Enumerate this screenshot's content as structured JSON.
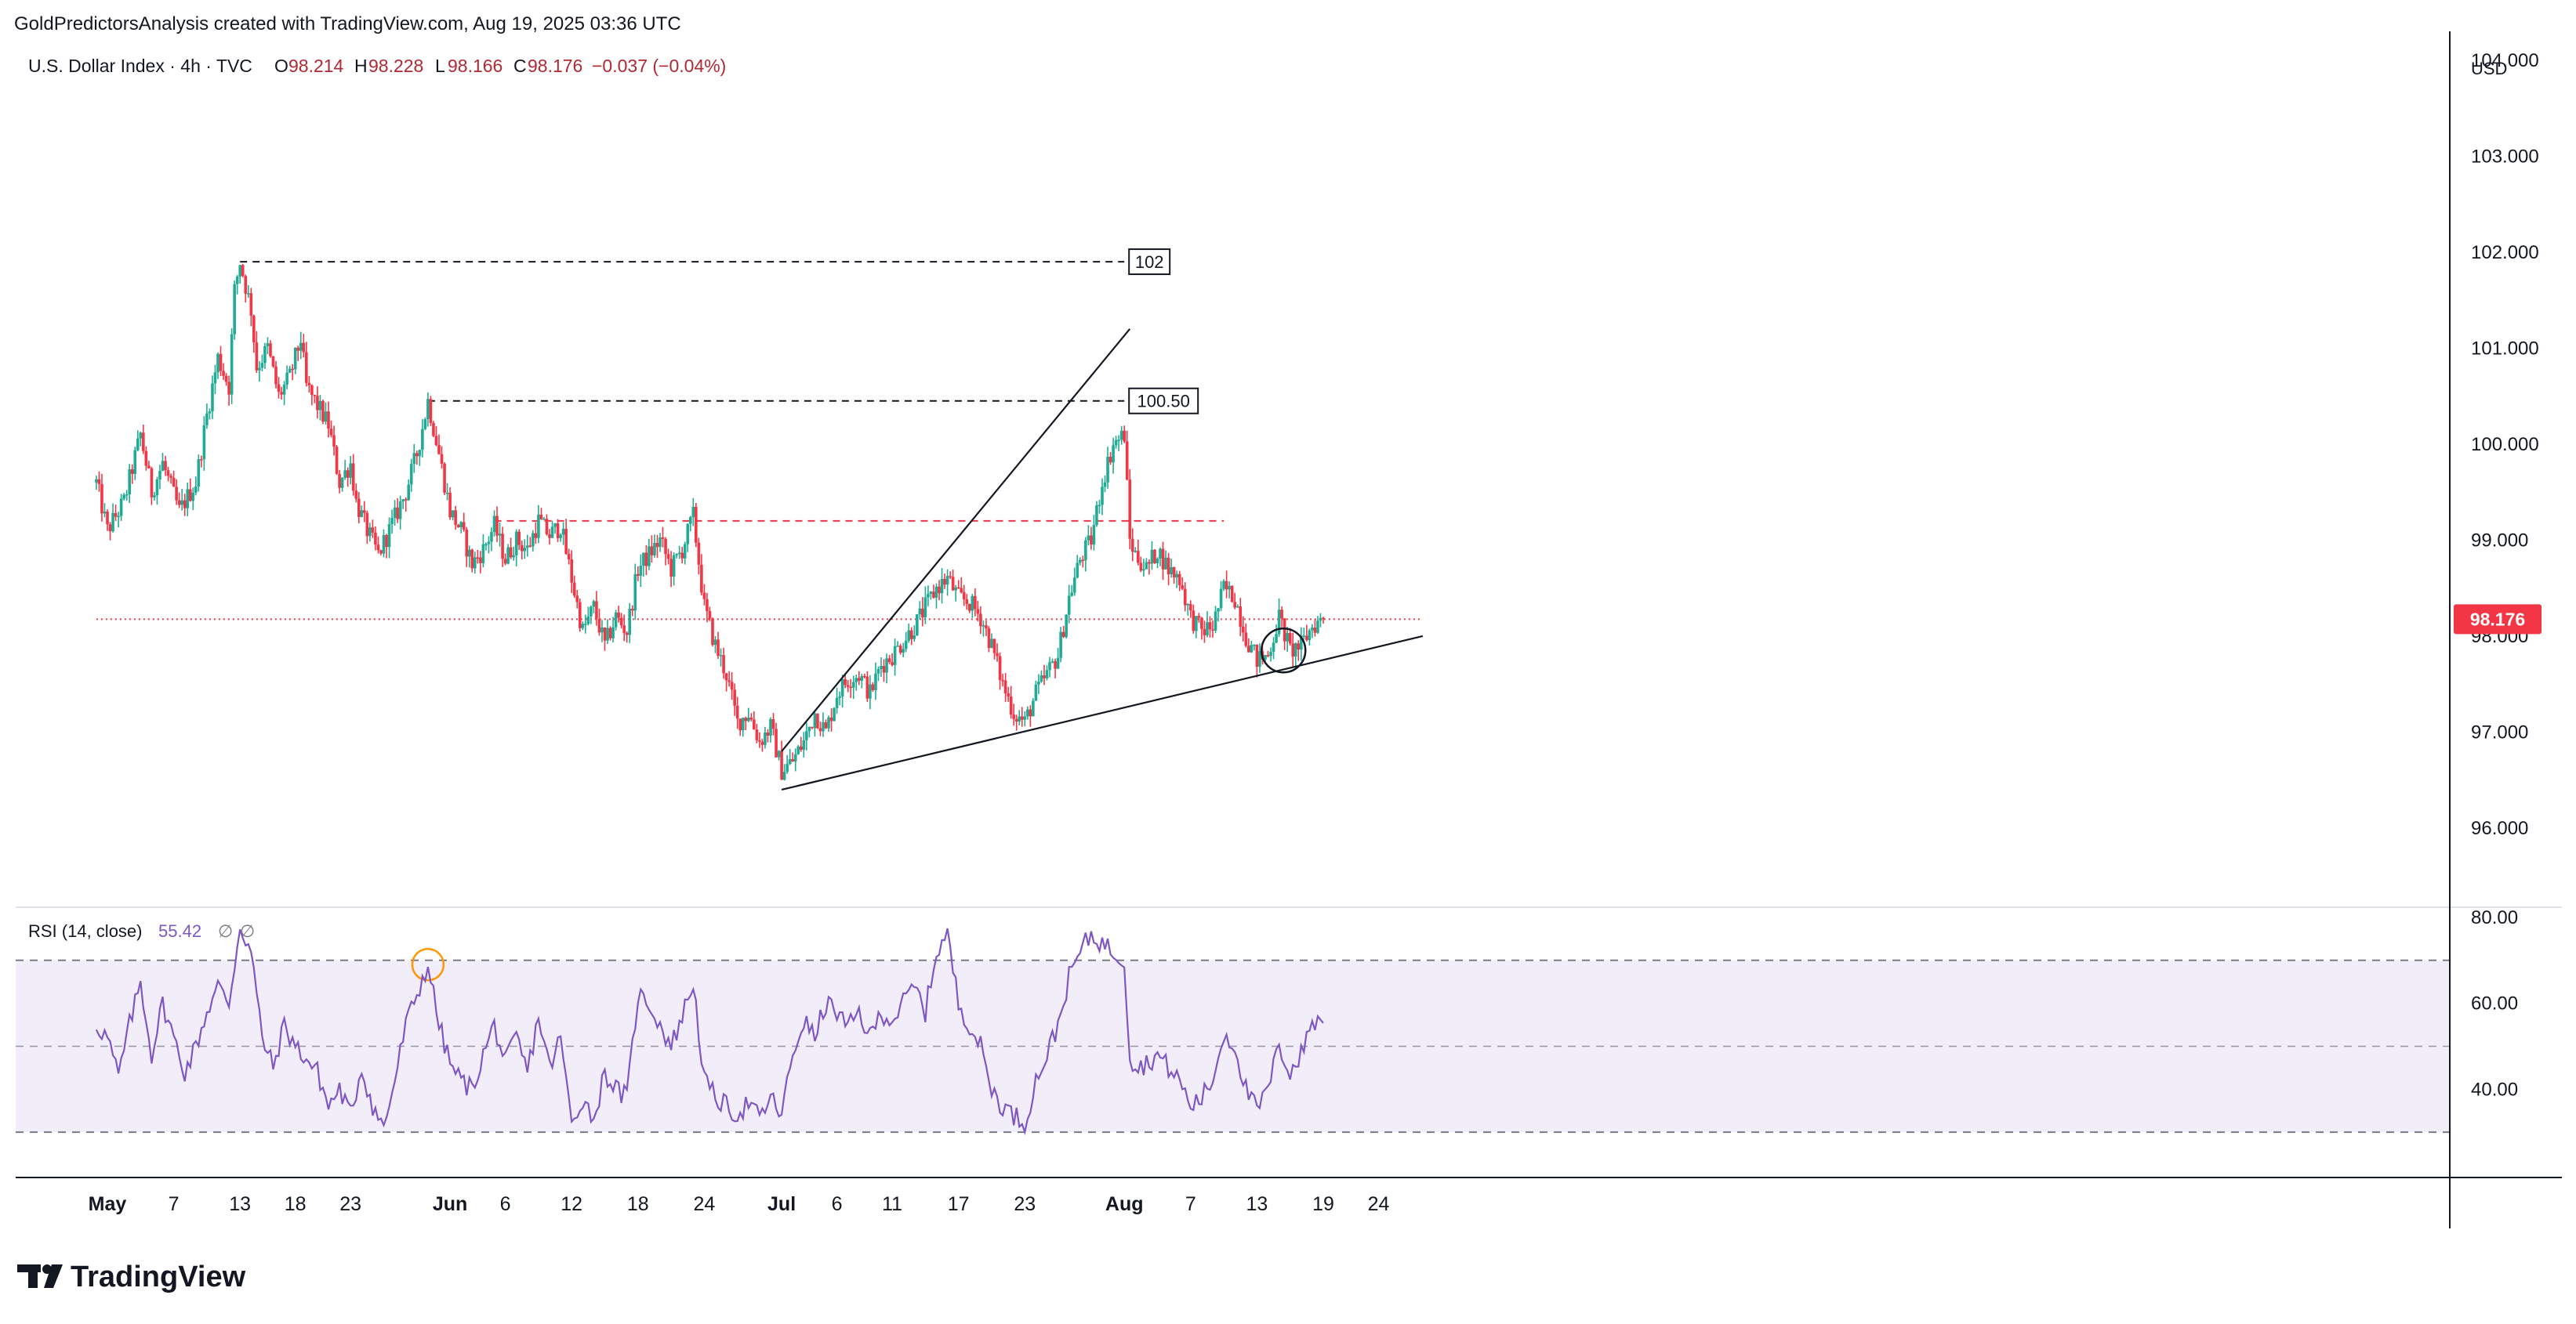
{
  "header": {
    "attribution": "GoldPredictorsAnalysis created with TradingView.com, Aug 19, 2025 03:36 UTC"
  },
  "legend": {
    "symbol": "U.S. Dollar Index · 4h · TVC",
    "open_label": "O",
    "open": "98.214",
    "high_label": "H",
    "high": "98.228",
    "low_label": "L",
    "low": "98.166",
    "close_label": "C",
    "close": "98.176",
    "change": "−0.037 (−0.04%)"
  },
  "price_axis": {
    "currency": "USD",
    "ticks": [
      {
        "value": 104,
        "label": "104.000"
      },
      {
        "value": 103,
        "label": "103.000"
      },
      {
        "value": 102,
        "label": "102.000"
      },
      {
        "value": 101,
        "label": "101.000"
      },
      {
        "value": 100,
        "label": "100.000"
      },
      {
        "value": 99,
        "label": "99.000"
      },
      {
        "value": 98,
        "label": "98.000"
      },
      {
        "value": 97,
        "label": "97.000"
      },
      {
        "value": 96,
        "label": "96.000"
      }
    ],
    "current_price_label": "98.176"
  },
  "rsi": {
    "legend": "RSI (14, close)",
    "value": "55.42",
    "extra1": "∅",
    "extra2": "∅",
    "ticks": [
      {
        "value": 80,
        "label": "80.00"
      },
      {
        "value": 60,
        "label": "60.00"
      },
      {
        "value": 40,
        "label": "40.00"
      }
    ]
  },
  "time_axis": {
    "ticks": [
      {
        "day": 0,
        "label": "May",
        "bold": true
      },
      {
        "day": 6,
        "label": "7"
      },
      {
        "day": 12,
        "label": "13"
      },
      {
        "day": 17,
        "label": "18"
      },
      {
        "day": 22,
        "label": "23"
      },
      {
        "day": 31,
        "label": "Jun",
        "bold": true
      },
      {
        "day": 36,
        "label": "6"
      },
      {
        "day": 42,
        "label": "12"
      },
      {
        "day": 48,
        "label": "18"
      },
      {
        "day": 54,
        "label": "24"
      },
      {
        "day": 61,
        "label": "Jul",
        "bold": true
      },
      {
        "day": 66,
        "label": "6"
      },
      {
        "day": 71,
        "label": "11"
      },
      {
        "day": 77,
        "label": "17"
      },
      {
        "day": 83,
        "label": "23"
      },
      {
        "day": 92,
        "label": "Aug",
        "bold": true
      },
      {
        "day": 98,
        "label": "7"
      },
      {
        "day": 104,
        "label": "13"
      },
      {
        "day": 110,
        "label": "19"
      },
      {
        "day": 115,
        "label": "24"
      }
    ]
  },
  "annotations": {
    "level_102": "102",
    "level_100_50": "100.50"
  },
  "logo": {
    "text": "TradingView"
  },
  "colors": {
    "up": "#22ab94",
    "down": "#f23645",
    "rsi_line": "#7e57c2",
    "rsi_band": "rgba(126,87,194,0.10)",
    "price_tag": "#f23645"
  },
  "chart_data": [
    {
      "type": "candlestick",
      "title": "U.S. Dollar Index · 4h · TVC",
      "x_unit": "days since May 1, 2025",
      "ylim": [
        95.2,
        104.3
      ],
      "path": [
        [
          -1,
          99.6
        ],
        [
          0,
          99.1
        ],
        [
          1.5,
          99.4
        ],
        [
          3,
          100.1
        ],
        [
          4,
          99.5
        ],
        [
          5,
          99.8
        ],
        [
          6.5,
          99.3
        ],
        [
          8,
          99.6
        ],
        [
          9,
          100.3
        ],
        [
          10,
          100.9
        ],
        [
          11,
          100.6
        ],
        [
          11.5,
          101.6
        ],
        [
          12,
          101.9
        ],
        [
          13,
          101.4
        ],
        [
          13.5,
          100.8
        ],
        [
          14.5,
          101.0
        ],
        [
          15.5,
          100.5
        ],
        [
          16.5,
          100.7
        ],
        [
          17.5,
          101.1
        ],
        [
          18,
          100.6
        ],
        [
          19,
          100.4
        ],
        [
          20,
          100.2
        ],
        [
          21,
          99.6
        ],
        [
          22,
          99.8
        ],
        [
          22.5,
          99.4
        ],
        [
          23.5,
          99.1
        ],
        [
          24.5,
          98.85
        ],
        [
          25.5,
          99.1
        ],
        [
          27,
          99.5
        ],
        [
          28,
          99.9
        ],
        [
          29,
          100.45
        ],
        [
          30,
          99.9
        ],
        [
          31,
          99.3
        ],
        [
          32,
          99.1
        ],
        [
          33,
          98.75
        ],
        [
          34,
          98.9
        ],
        [
          35,
          99.15
        ],
        [
          36,
          98.8
        ],
        [
          37,
          99.0
        ],
        [
          38,
          98.9
        ],
        [
          39,
          99.2
        ],
        [
          40,
          99.05
        ],
        [
          41,
          99.15
        ],
        [
          42,
          98.6
        ],
        [
          43,
          98.05
        ],
        [
          44,
          98.3
        ],
        [
          45,
          97.9
        ],
        [
          46,
          98.2
        ],
        [
          47,
          98.05
        ],
        [
          48,
          98.7
        ],
        [
          49,
          98.85
        ],
        [
          50,
          99.0
        ],
        [
          51,
          98.7
        ],
        [
          52,
          98.9
        ],
        [
          53,
          99.25
        ],
        [
          54,
          98.3
        ],
        [
          55,
          97.9
        ],
        [
          56,
          97.6
        ],
        [
          57,
          97.1
        ],
        [
          58,
          97.2
        ],
        [
          59,
          96.9
        ],
        [
          60,
          97.05
        ],
        [
          61,
          96.6
        ],
        [
          62,
          96.7
        ],
        [
          63,
          96.9
        ],
        [
          64,
          97.2
        ],
        [
          65,
          97.0
        ],
        [
          66,
          97.4
        ],
        [
          67,
          97.55
        ],
        [
          68,
          97.6
        ],
        [
          69,
          97.4
        ],
        [
          70,
          97.7
        ],
        [
          71,
          97.8
        ],
        [
          72,
          97.95
        ],
        [
          73,
          98.1
        ],
        [
          74,
          98.3
        ],
        [
          75,
          98.5
        ],
        [
          76,
          98.6
        ],
        [
          77,
          98.4
        ],
        [
          78,
          98.35
        ],
        [
          79,
          98.2
        ],
        [
          80,
          97.9
        ],
        [
          81,
          97.5
        ],
        [
          82,
          97.2
        ],
        [
          83,
          97.1
        ],
        [
          84,
          97.4
        ],
        [
          85,
          97.6
        ],
        [
          86,
          97.8
        ],
        [
          87,
          98.4
        ],
        [
          88,
          98.8
        ],
        [
          89,
          99.0
        ],
        [
          90,
          99.6
        ],
        [
          91,
          100.0
        ],
        [
          92,
          100.1
        ],
        [
          92.5,
          99.0
        ],
        [
          93,
          98.85
        ],
        [
          94,
          98.7
        ],
        [
          95,
          98.9
        ],
        [
          96,
          98.7
        ],
        [
          97,
          98.6
        ],
        [
          98,
          98.2
        ],
        [
          99,
          98.05
        ],
        [
          100,
          98.1
        ],
        [
          101,
          98.5
        ],
        [
          102,
          98.4
        ],
        [
          103,
          98.0
        ],
        [
          104,
          97.75
        ],
        [
          105,
          97.8
        ],
        [
          106,
          98.2
        ],
        [
          107,
          97.85
        ],
        [
          108,
          97.9
        ],
        [
          109,
          98.1
        ],
        [
          110,
          98.18
        ]
      ],
      "horizontal_levels": [
        {
          "price": 101.9,
          "from_day": 12,
          "to_day": 92,
          "style": "dashed",
          "color": "#131722",
          "label": "102"
        },
        {
          "price": 100.45,
          "from_day": 29,
          "to_day": 92,
          "style": "dashed",
          "color": "#131722",
          "label": "100.50"
        },
        {
          "price": 99.2,
          "from_day": 35,
          "to_day": 101,
          "style": "dashed",
          "color": "#f23645"
        },
        {
          "price": 98.176,
          "from_day": -1,
          "to_day": 119,
          "style": "dotted",
          "color": "#f23645"
        }
      ],
      "trendlines": [
        {
          "from": [
            61,
            96.4
          ],
          "to": [
            119,
            98.0
          ]
        },
        {
          "from": [
            61,
            96.8
          ],
          "to": [
            92.5,
            101.2
          ]
        }
      ],
      "markers": [
        {
          "type": "circle",
          "day": 106.4,
          "price": 97.85,
          "color": "#131722"
        }
      ]
    },
    {
      "type": "line",
      "title": "RSI (14, close)",
      "ylim": [
        20,
        82
      ],
      "bands": [
        30,
        50,
        70
      ],
      "path": [
        [
          -1,
          55
        ],
        [
          0,
          52
        ],
        [
          1,
          43
        ],
        [
          2,
          55
        ],
        [
          3,
          65
        ],
        [
          4,
          48
        ],
        [
          5,
          60
        ],
        [
          6,
          52
        ],
        [
          7,
          44
        ],
        [
          8,
          50
        ],
        [
          9,
          58
        ],
        [
          10,
          64
        ],
        [
          11,
          60
        ],
        [
          12,
          78
        ],
        [
          13,
          72
        ],
        [
          14,
          52
        ],
        [
          15,
          45
        ],
        [
          16,
          55
        ],
        [
          17,
          50
        ],
        [
          18,
          47
        ],
        [
          19,
          44
        ],
        [
          20,
          36
        ],
        [
          21,
          40
        ],
        [
          22,
          34
        ],
        [
          23,
          45
        ],
        [
          24,
          36
        ],
        [
          25,
          31
        ],
        [
          26,
          42
        ],
        [
          27,
          55
        ],
        [
          28,
          62
        ],
        [
          29,
          69
        ],
        [
          30,
          55
        ],
        [
          31,
          46
        ],
        [
          32,
          42
        ],
        [
          33,
          40
        ],
        [
          34,
          48
        ],
        [
          35,
          55
        ],
        [
          36,
          46
        ],
        [
          37,
          52
        ],
        [
          38,
          44
        ],
        [
          39,
          57
        ],
        [
          40,
          45
        ],
        [
          41,
          52
        ],
        [
          42,
          32
        ],
        [
          43,
          38
        ],
        [
          44,
          33
        ],
        [
          45,
          44
        ],
        [
          46,
          40
        ],
        [
          47,
          38
        ],
        [
          48,
          62
        ],
        [
          49,
          60
        ],
        [
          50,
          55
        ],
        [
          51,
          50
        ],
        [
          52,
          57
        ],
        [
          53,
          65
        ],
        [
          54,
          42
        ],
        [
          55,
          38
        ],
        [
          56,
          36
        ],
        [
          57,
          34
        ],
        [
          58,
          37
        ],
        [
          59,
          33
        ],
        [
          60,
          38
        ],
        [
          61,
          34
        ],
        [
          62,
          48
        ],
        [
          63,
          56
        ],
        [
          64,
          52
        ],
        [
          65,
          60
        ],
        [
          66,
          58
        ],
        [
          67,
          54
        ],
        [
          68,
          58
        ],
        [
          69,
          52
        ],
        [
          70,
          58
        ],
        [
          71,
          56
        ],
        [
          72,
          60
        ],
        [
          73,
          64
        ],
        [
          74,
          58
        ],
        [
          75,
          72
        ],
        [
          76,
          76
        ],
        [
          77,
          60
        ],
        [
          78,
          55
        ],
        [
          79,
          50
        ],
        [
          80,
          40
        ],
        [
          81,
          36
        ],
        [
          82,
          34
        ],
        [
          83,
          32
        ],
        [
          84,
          42
        ],
        [
          85,
          48
        ],
        [
          86,
          55
        ],
        [
          87,
          66
        ],
        [
          88,
          72
        ],
        [
          89,
          76
        ],
        [
          90,
          74
        ],
        [
          91,
          72
        ],
        [
          92,
          70
        ],
        [
          92.5,
          48
        ],
        [
          93,
          45
        ],
        [
          94,
          46
        ],
        [
          95,
          48
        ],
        [
          96,
          45
        ],
        [
          97,
          42
        ],
        [
          98,
          36
        ],
        [
          99,
          38
        ],
        [
          100,
          42
        ],
        [
          101,
          53
        ],
        [
          102,
          50
        ],
        [
          103,
          40
        ],
        [
          104,
          35
        ],
        [
          105,
          40
        ],
        [
          106,
          50
        ],
        [
          107,
          44
        ],
        [
          108,
          48
        ],
        [
          109,
          56
        ],
        [
          110,
          55.42
        ]
      ],
      "markers": [
        {
          "type": "circle",
          "day": 29,
          "value": 69,
          "color": "#ff9800"
        }
      ]
    }
  ]
}
